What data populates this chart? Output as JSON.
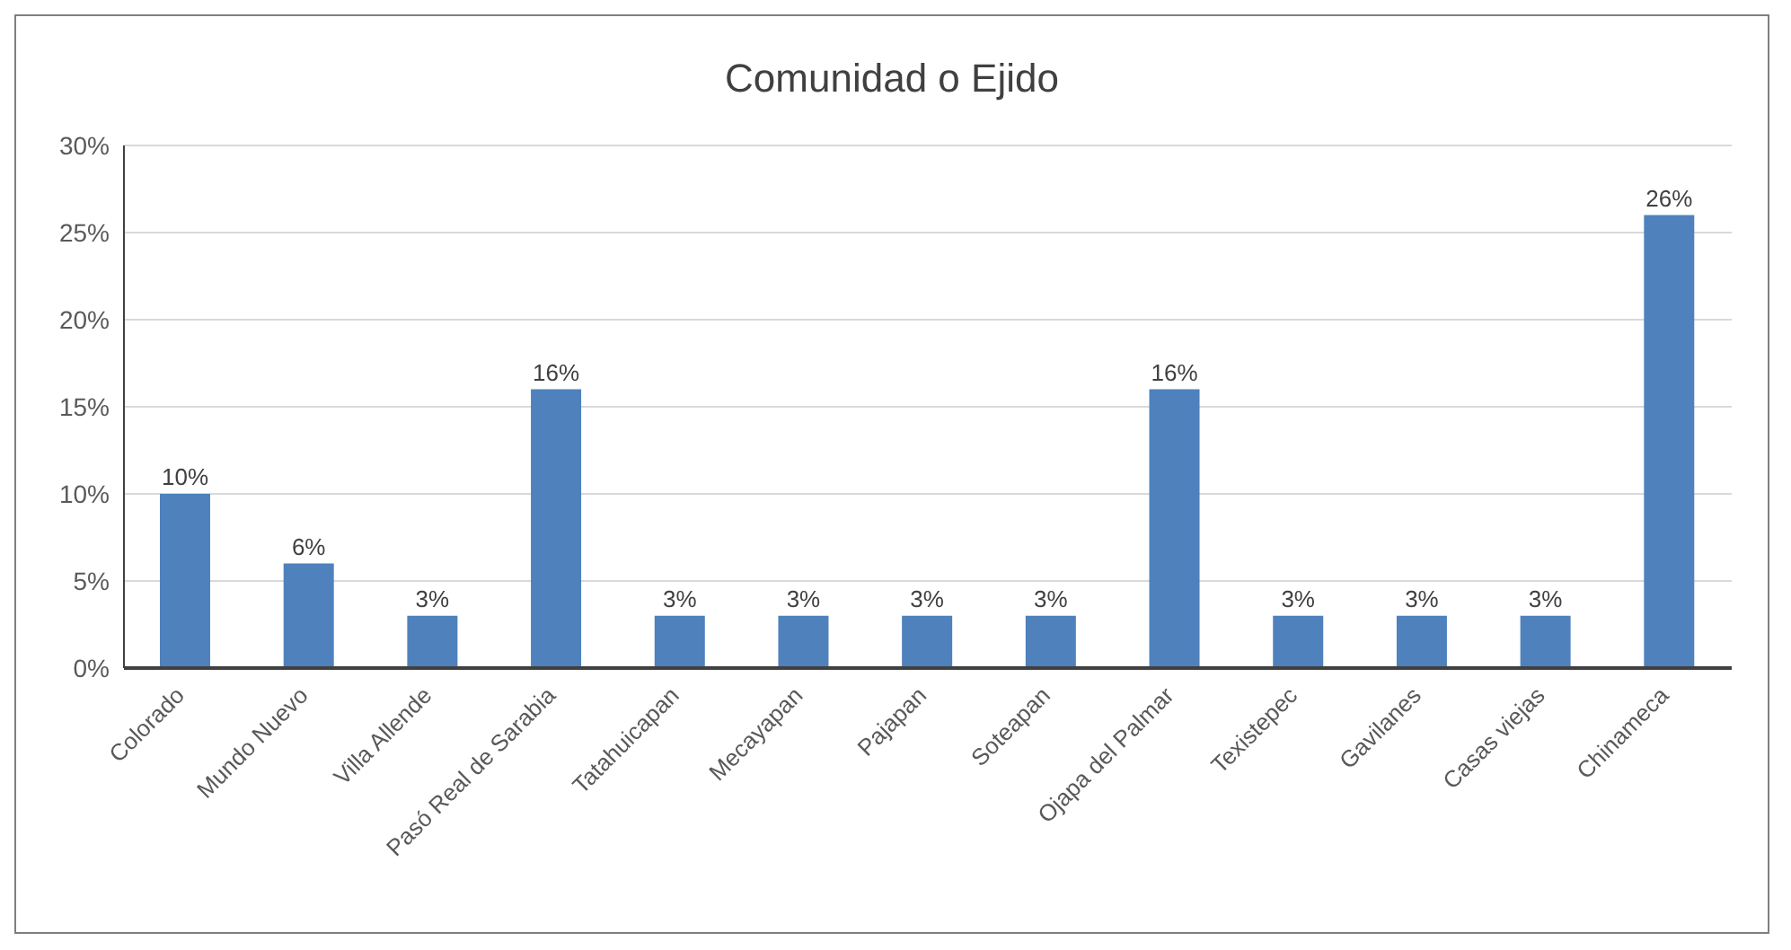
{
  "chart_data": {
    "type": "bar",
    "title": "Comunidad o Ejido",
    "categories": [
      "Colorado",
      "Mundo Nuevo",
      "Villa Allende",
      "Pasó Real de Sarabia",
      "Tatahuicapan",
      "Mecayapan",
      "Pajapan",
      "Soteapan",
      "Ojapa del Palmar",
      "Texistepec",
      "Gavilanes",
      "Casas viejas",
      "Chinameca"
    ],
    "values": [
      10,
      6,
      3,
      16,
      3,
      3,
      3,
      3,
      16,
      3,
      3,
      3,
      26
    ],
    "value_labels": [
      "10%",
      "6%",
      "3%",
      "16%",
      "3%",
      "3%",
      "3%",
      "3%",
      "16%",
      "3%",
      "3%",
      "3%",
      "26%"
    ],
    "color": "#4f81bd",
    "ylim": [
      0,
      30
    ],
    "yticks": [
      {
        "value": 0,
        "label": "0%"
      },
      {
        "value": 5,
        "label": "5%"
      },
      {
        "value": 10,
        "label": "10%"
      },
      {
        "value": 15,
        "label": "15%"
      },
      {
        "value": 20,
        "label": "20%"
      },
      {
        "value": 25,
        "label": "25%"
      },
      {
        "value": 30,
        "label": "30%"
      }
    ],
    "grid": "y"
  }
}
